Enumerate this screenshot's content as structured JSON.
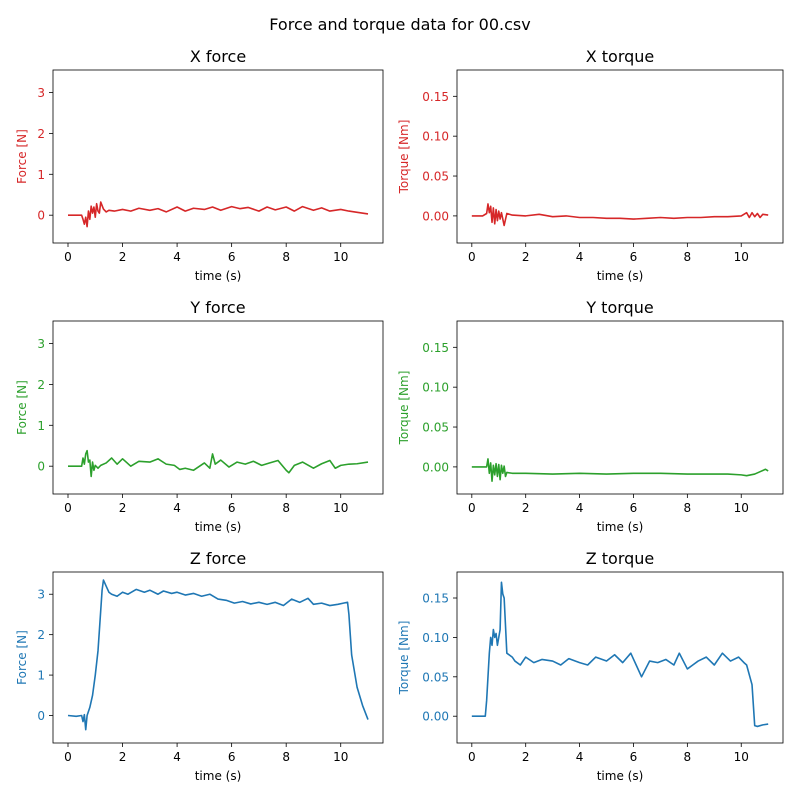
{
  "figure": {
    "suptitle": "Force and torque data for 00.csv"
  },
  "chart_data": [
    {
      "type": "line",
      "title": "X force",
      "xlabel": "time (s)",
      "ylabel": "Force [N]",
      "color": "#d62728",
      "xlim": [
        -0.55,
        11.55
      ],
      "ylim": [
        -0.68,
        3.55
      ],
      "xticks": [
        0,
        2,
        4,
        6,
        8,
        10
      ],
      "yticks": [
        0,
        1,
        2,
        3
      ],
      "ytick_labels": [
        "0",
        "1",
        "2",
        "3"
      ],
      "grid": false,
      "series": [
        {
          "x": [
            0,
            0.4,
            0.5,
            0.55,
            0.6,
            0.65,
            0.7,
            0.75,
            0.8,
            0.85,
            0.9,
            0.95,
            1.0,
            1.05,
            1.1,
            1.15,
            1.2,
            1.3,
            1.4,
            1.5,
            1.7,
            2.0,
            2.3,
            2.6,
            3.0,
            3.3,
            3.6,
            4.0,
            4.3,
            4.6,
            5.0,
            5.3,
            5.6,
            6.0,
            6.3,
            6.6,
            7.0,
            7.3,
            7.6,
            8.0,
            8.3,
            8.6,
            9.0,
            9.3,
            9.6,
            10.0,
            10.3,
            10.6,
            11.0
          ],
          "y": [
            0,
            0,
            0,
            -0.1,
            -0.22,
            -0.05,
            -0.28,
            0.1,
            -0.1,
            0.22,
            0.05,
            0.2,
            -0.05,
            0.28,
            0.1,
            0.05,
            0.32,
            0.15,
            0.08,
            0.12,
            0.1,
            0.14,
            0.1,
            0.17,
            0.12,
            0.16,
            0.08,
            0.2,
            0.1,
            0.17,
            0.14,
            0.2,
            0.12,
            0.21,
            0.16,
            0.19,
            0.1,
            0.2,
            0.13,
            0.2,
            0.1,
            0.21,
            0.12,
            0.18,
            0.1,
            0.14,
            0.1,
            0.07,
            0.03
          ]
        }
      ]
    },
    {
      "type": "line",
      "title": "X torque",
      "xlabel": "time (s)",
      "ylabel": "Torque [Nm]",
      "color": "#d62728",
      "xlim": [
        -0.55,
        11.55
      ],
      "ylim": [
        -0.034,
        0.183
      ],
      "xticks": [
        0,
        2,
        4,
        6,
        8,
        10
      ],
      "yticks": [
        0,
        0.05,
        0.1,
        0.15
      ],
      "ytick_labels": [
        "0.00",
        "0.05",
        "0.10",
        "0.15"
      ],
      "grid": false,
      "series": [
        {
          "x": [
            0,
            0.4,
            0.55,
            0.6,
            0.65,
            0.7,
            0.75,
            0.8,
            0.85,
            0.9,
            0.95,
            1.0,
            1.05,
            1.1,
            1.2,
            1.3,
            1.5,
            2.0,
            2.5,
            3.0,
            3.5,
            4.0,
            4.5,
            5.0,
            5.5,
            6.0,
            6.5,
            7.0,
            7.5,
            8.0,
            8.5,
            9.0,
            9.5,
            10.0,
            10.2,
            10.3,
            10.4,
            10.5,
            10.6,
            10.7,
            10.8,
            11.0
          ],
          "y": [
            0,
            0,
            0.003,
            0.015,
            0.004,
            0.012,
            -0.008,
            0.01,
            -0.01,
            0.008,
            -0.006,
            0.006,
            -0.004,
            0.004,
            -0.012,
            0.003,
            0.001,
            0.0,
            0.002,
            -0.001,
            0.0,
            -0.002,
            -0.002,
            -0.003,
            -0.003,
            -0.004,
            -0.003,
            -0.002,
            -0.003,
            -0.002,
            -0.002,
            -0.001,
            -0.001,
            0.0,
            0.004,
            -0.002,
            0.004,
            -0.001,
            0.003,
            -0.002,
            0.002,
            0.001
          ]
        }
      ]
    },
    {
      "type": "line",
      "title": "Y force",
      "xlabel": "time (s)",
      "ylabel": "Force [N]",
      "color": "#2ca02c",
      "xlim": [
        -0.55,
        11.55
      ],
      "ylim": [
        -0.68,
        3.55
      ],
      "xticks": [
        0,
        2,
        4,
        6,
        8,
        10
      ],
      "yticks": [
        0,
        1,
        2,
        3
      ],
      "ytick_labels": [
        "0",
        "1",
        "2",
        "3"
      ],
      "grid": false,
      "series": [
        {
          "x": [
            0,
            0.4,
            0.5,
            0.55,
            0.6,
            0.65,
            0.7,
            0.75,
            0.8,
            0.85,
            0.9,
            0.95,
            1.0,
            1.1,
            1.2,
            1.4,
            1.6,
            1.8,
            2.0,
            2.3,
            2.6,
            3.0,
            3.3,
            3.6,
            3.9,
            4.1,
            4.3,
            4.6,
            5.0,
            5.2,
            5.3,
            5.4,
            5.6,
            5.9,
            6.2,
            6.5,
            6.8,
            7.1,
            7.4,
            7.7,
            8.0,
            8.1,
            8.3,
            8.6,
            9.0,
            9.3,
            9.6,
            9.8,
            10.0,
            10.3,
            10.6,
            11.0
          ],
          "y": [
            0,
            0,
            0,
            0.2,
            0.05,
            0.3,
            0.38,
            0.1,
            0.15,
            -0.25,
            0.1,
            -0.1,
            0.02,
            -0.05,
            0.02,
            0.08,
            0.2,
            0.05,
            0.18,
            0.0,
            0.12,
            0.1,
            0.18,
            0.05,
            0.02,
            -0.08,
            -0.05,
            -0.1,
            0.08,
            -0.05,
            0.3,
            0.05,
            0.15,
            -0.02,
            0.1,
            0.05,
            0.12,
            0.02,
            0.08,
            0.14,
            -0.1,
            -0.16,
            0.02,
            0.1,
            -0.05,
            0.06,
            0.14,
            -0.05,
            0.02,
            0.05,
            0.06,
            0.1
          ]
        }
      ]
    },
    {
      "type": "line",
      "title": "Y torque",
      "xlabel": "time (s)",
      "ylabel": "Torque [Nm]",
      "color": "#2ca02c",
      "xlim": [
        -0.55,
        11.55
      ],
      "ylim": [
        -0.034,
        0.183
      ],
      "xticks": [
        0,
        2,
        4,
        6,
        8,
        10
      ],
      "yticks": [
        0,
        0.05,
        0.1,
        0.15
      ],
      "ytick_labels": [
        "0.00",
        "0.05",
        "0.10",
        "0.15"
      ],
      "grid": false,
      "series": [
        {
          "x": [
            0,
            0.5,
            0.55,
            0.6,
            0.65,
            0.7,
            0.75,
            0.8,
            0.85,
            0.9,
            0.95,
            1.0,
            1.05,
            1.1,
            1.15,
            1.2,
            1.25,
            1.3,
            1.5,
            2.0,
            3.0,
            4.0,
            5.0,
            6.0,
            7.0,
            8.0,
            9.0,
            9.5,
            10.0,
            10.2,
            10.5,
            10.7,
            10.9,
            11.0
          ],
          "y": [
            0,
            0,
            0.0,
            0.01,
            -0.008,
            0.005,
            -0.018,
            0.002,
            -0.01,
            0.004,
            -0.012,
            0.003,
            -0.016,
            0.002,
            -0.008,
            0.001,
            -0.012,
            -0.007,
            -0.008,
            -0.008,
            -0.009,
            -0.008,
            -0.009,
            -0.008,
            -0.008,
            -0.009,
            -0.009,
            -0.009,
            -0.01,
            -0.011,
            -0.009,
            -0.006,
            -0.003,
            -0.005
          ]
        }
      ]
    },
    {
      "type": "line",
      "title": "Z force",
      "xlabel": "time (s)",
      "ylabel": "Force [N]",
      "color": "#1f77b4",
      "xlim": [
        -0.55,
        11.55
      ],
      "ylim": [
        -0.68,
        3.55
      ],
      "xticks": [
        0,
        2,
        4,
        6,
        8,
        10
      ],
      "yticks": [
        0,
        1,
        2,
        3
      ],
      "ytick_labels": [
        "0",
        "1",
        "2",
        "3"
      ],
      "grid": false,
      "series": [
        {
          "x": [
            0,
            0.3,
            0.5,
            0.55,
            0.6,
            0.65,
            0.7,
            0.8,
            0.9,
            1.0,
            1.1,
            1.2,
            1.25,
            1.3,
            1.4,
            1.5,
            1.6,
            1.8,
            2.0,
            2.2,
            2.5,
            2.8,
            3.0,
            3.3,
            3.5,
            3.8,
            4.0,
            4.3,
            4.6,
            4.9,
            5.2,
            5.5,
            5.8,
            6.1,
            6.4,
            6.7,
            7.0,
            7.3,
            7.6,
            7.9,
            8.2,
            8.5,
            8.8,
            9.0,
            9.3,
            9.6,
            9.9,
            10.1,
            10.25,
            10.3,
            10.4,
            10.6,
            10.8,
            11.0
          ],
          "y": [
            0,
            -0.02,
            0.0,
            -0.15,
            0.02,
            -0.35,
            0.0,
            0.2,
            0.5,
            1.0,
            1.6,
            2.6,
            3.1,
            3.35,
            3.2,
            3.05,
            3.0,
            2.95,
            3.05,
            3.0,
            3.12,
            3.05,
            3.1,
            3.0,
            3.08,
            3.02,
            3.05,
            2.98,
            3.02,
            2.95,
            3.0,
            2.88,
            2.85,
            2.78,
            2.82,
            2.76,
            2.8,
            2.75,
            2.8,
            2.72,
            2.88,
            2.8,
            2.9,
            2.75,
            2.78,
            2.72,
            2.75,
            2.78,
            2.8,
            2.5,
            1.5,
            0.7,
            0.25,
            -0.1
          ]
        }
      ]
    },
    {
      "type": "line",
      "title": "Z torque",
      "xlabel": "time (s)",
      "ylabel": "Torque [Nm]",
      "color": "#1f77b4",
      "xlim": [
        -0.55,
        11.55
      ],
      "ylim": [
        -0.034,
        0.183
      ],
      "xticks": [
        0,
        2,
        4,
        6,
        8,
        10
      ],
      "yticks": [
        0,
        0.05,
        0.1,
        0.15
      ],
      "ytick_labels": [
        "0.00",
        "0.05",
        "0.10",
        "0.15"
      ],
      "grid": false,
      "series": [
        {
          "x": [
            0,
            0.3,
            0.5,
            0.55,
            0.6,
            0.65,
            0.7,
            0.75,
            0.8,
            0.85,
            0.9,
            0.95,
            1.0,
            1.05,
            1.1,
            1.15,
            1.2,
            1.3,
            1.5,
            1.6,
            1.8,
            2.0,
            2.3,
            2.6,
            3.0,
            3.3,
            3.6,
            4.0,
            4.3,
            4.6,
            5.0,
            5.3,
            5.6,
            5.9,
            6.1,
            6.3,
            6.6,
            6.9,
            7.2,
            7.5,
            7.7,
            8.0,
            8.2,
            8.4,
            8.7,
            9.0,
            9.3,
            9.6,
            9.9,
            10.1,
            10.2,
            10.4,
            10.5,
            10.6,
            10.8,
            11.0
          ],
          "y": [
            0,
            0.0,
            0.0,
            0.02,
            0.05,
            0.08,
            0.1,
            0.09,
            0.11,
            0.1,
            0.105,
            0.09,
            0.1,
            0.11,
            0.17,
            0.155,
            0.15,
            0.08,
            0.075,
            0.07,
            0.065,
            0.075,
            0.068,
            0.072,
            0.07,
            0.065,
            0.073,
            0.068,
            0.065,
            0.075,
            0.07,
            0.078,
            0.068,
            0.08,
            0.065,
            0.05,
            0.07,
            0.068,
            0.072,
            0.065,
            0.08,
            0.06,
            0.065,
            0.07,
            0.075,
            0.065,
            0.08,
            0.07,
            0.075,
            0.068,
            0.065,
            0.04,
            -0.012,
            -0.013,
            -0.011,
            -0.01
          ]
        }
      ]
    }
  ]
}
